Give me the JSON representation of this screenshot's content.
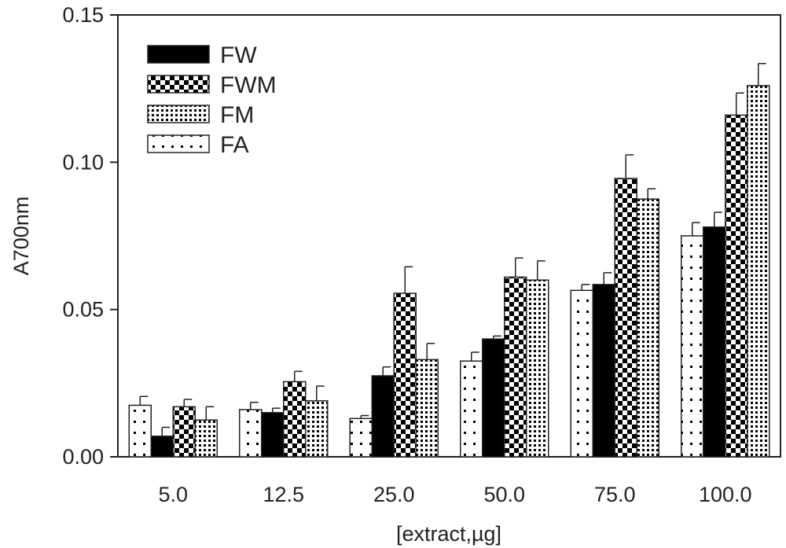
{
  "chart_data": {
    "type": "bar",
    "xlabel": "[extract,µg]",
    "ylabel": "A700nm",
    "ylim": [
      0,
      0.15
    ],
    "yticks": [
      "0.00",
      "0.05",
      "0.10",
      "0.15"
    ],
    "categories": [
      "5.0",
      "12.5",
      "25.0",
      "50.0",
      "75.0",
      "100.0"
    ],
    "series": [
      {
        "name": "FA",
        "values": [
          0.0175,
          0.016,
          0.013,
          0.0325,
          0.0565,
          0.075
        ],
        "errors": [
          0.003,
          0.0025,
          0.001,
          0.003,
          0.002,
          0.0045
        ]
      },
      {
        "name": "FW",
        "values": [
          0.007,
          0.015,
          0.0275,
          0.04,
          0.0585,
          0.078
        ],
        "errors": [
          0.003,
          0.0015,
          0.003,
          0.001,
          0.004,
          0.005
        ]
      },
      {
        "name": "FWM",
        "values": [
          0.017,
          0.0255,
          0.0555,
          0.061,
          0.0945,
          0.116
        ],
        "errors": [
          0.0025,
          0.0035,
          0.009,
          0.0065,
          0.008,
          0.0075
        ]
      },
      {
        "name": "FM",
        "values": [
          0.0125,
          0.019,
          0.033,
          0.06,
          0.0875,
          0.126
        ],
        "errors": [
          0.0045,
          0.005,
          0.0055,
          0.0065,
          0.0035,
          0.0075
        ]
      }
    ],
    "legend": {
      "placement": "top-left",
      "order": [
        "FW",
        "FWM",
        "FM",
        "FA"
      ]
    },
    "grid": false
  },
  "colors": {
    "axis": "#222222",
    "FW": "#000000",
    "FWM": "checkerboard",
    "FM": "fine-dots",
    "FA": "sparse-dots"
  }
}
